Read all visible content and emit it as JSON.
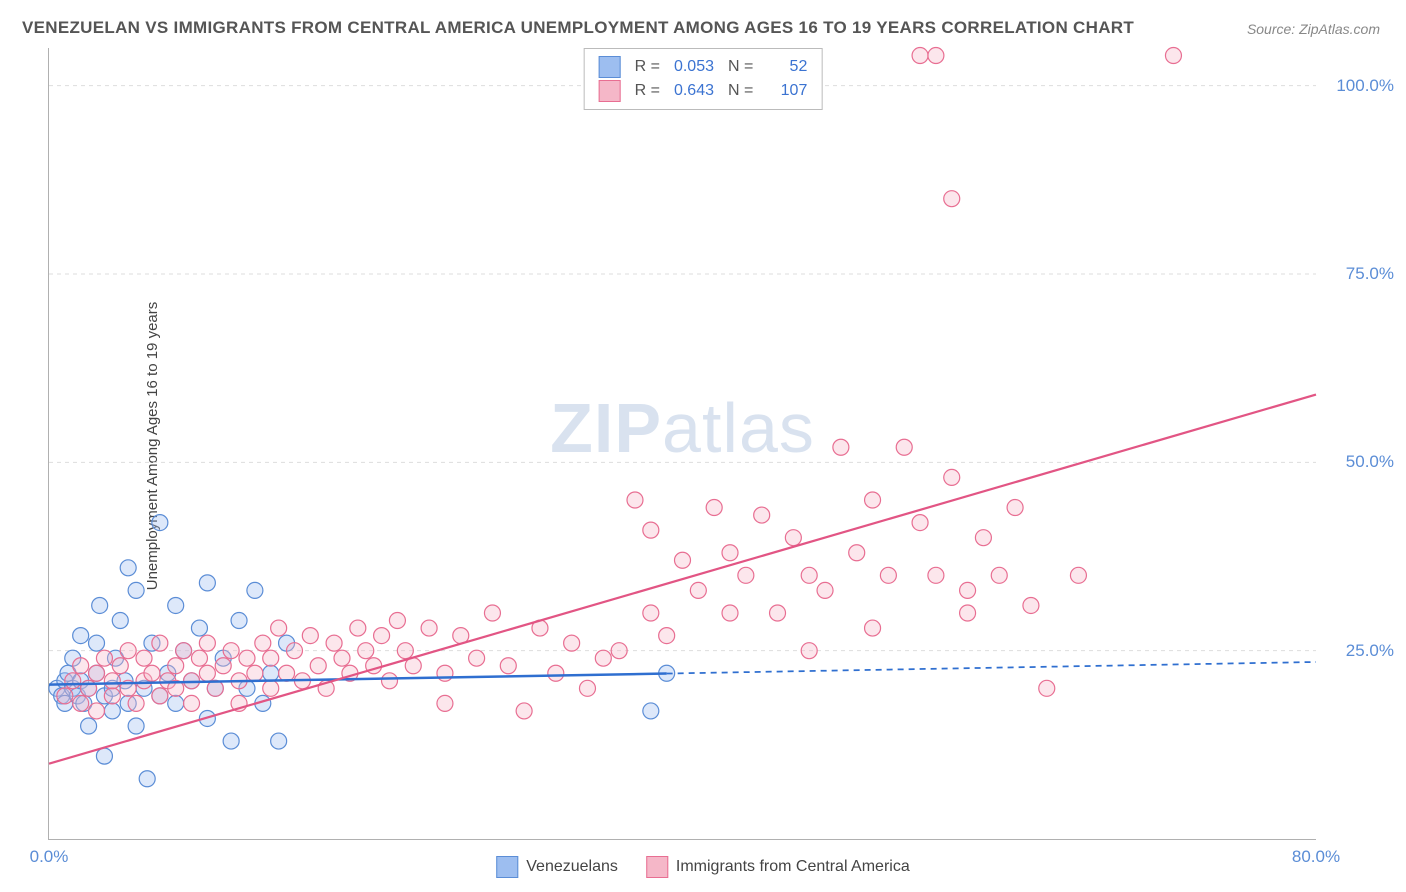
{
  "title": "VENEZUELAN VS IMMIGRANTS FROM CENTRAL AMERICA UNEMPLOYMENT AMONG AGES 16 TO 19 YEARS CORRELATION CHART",
  "source": "Source: ZipAtlas.com",
  "y_axis_label": "Unemployment Among Ages 16 to 19 years",
  "watermark_a": "ZIP",
  "watermark_b": "atlas",
  "chart": {
    "type": "scatter",
    "xlim": [
      0,
      80
    ],
    "ylim": [
      0,
      105
    ],
    "x_ticks": [
      {
        "v": 0,
        "label": "0.0%"
      },
      {
        "v": 80,
        "label": "80.0%"
      }
    ],
    "y_ticks": [
      {
        "v": 25,
        "label": "25.0%"
      },
      {
        "v": 50,
        "label": "50.0%"
      },
      {
        "v": 75,
        "label": "75.0%"
      },
      {
        "v": 100,
        "label": "100.0%"
      }
    ],
    "grid_color": "#dddddd",
    "axis_color": "#b0b0b0",
    "background_color": "#ffffff",
    "marker_radius": 8,
    "marker_fill_opacity": 0.35,
    "marker_stroke_width": 1.2,
    "series": [
      {
        "name": "Venezuelans",
        "color_fill": "#9dbef0",
        "color_stroke": "#5b8dd6",
        "r": 0.053,
        "n": 52,
        "trend": {
          "x1": 0,
          "y1": 20.5,
          "x2": 80,
          "y2": 23.5,
          "solid_until_x": 39,
          "color": "#2f6fd0",
          "width": 2.5
        },
        "points": [
          [
            0.5,
            20
          ],
          [
            0.8,
            19
          ],
          [
            1,
            21
          ],
          [
            1,
            18
          ],
          [
            1.2,
            22
          ],
          [
            1.5,
            20
          ],
          [
            1.5,
            24
          ],
          [
            1.8,
            19
          ],
          [
            2,
            21
          ],
          [
            2,
            27
          ],
          [
            2.2,
            18
          ],
          [
            2.5,
            20
          ],
          [
            2.5,
            15
          ],
          [
            3,
            22
          ],
          [
            3,
            26
          ],
          [
            3.2,
            31
          ],
          [
            3.5,
            19
          ],
          [
            3.5,
            11
          ],
          [
            4,
            20
          ],
          [
            4,
            17
          ],
          [
            4.2,
            24
          ],
          [
            4.5,
            29
          ],
          [
            4.8,
            21
          ],
          [
            5,
            18
          ],
          [
            5,
            36
          ],
          [
            5.5,
            33
          ],
          [
            5.5,
            15
          ],
          [
            6,
            20
          ],
          [
            6.2,
            8
          ],
          [
            6.5,
            26
          ],
          [
            7,
            19
          ],
          [
            7,
            42
          ],
          [
            7.5,
            22
          ],
          [
            8,
            31
          ],
          [
            8,
            18
          ],
          [
            8.5,
            25
          ],
          [
            9,
            21
          ],
          [
            9.5,
            28
          ],
          [
            10,
            16
          ],
          [
            10,
            34
          ],
          [
            10.5,
            20
          ],
          [
            11,
            24
          ],
          [
            11.5,
            13
          ],
          [
            12,
            29
          ],
          [
            12.5,
            20
          ],
          [
            13,
            33
          ],
          [
            13.5,
            18
          ],
          [
            14,
            22
          ],
          [
            14.5,
            13
          ],
          [
            15,
            26
          ],
          [
            38,
            17
          ],
          [
            39,
            22
          ]
        ]
      },
      {
        "name": "Immigrants from Central America",
        "color_fill": "#f5b7c8",
        "color_stroke": "#e86e92",
        "r": 0.643,
        "n": 107,
        "trend": {
          "x1": 0,
          "y1": 10,
          "x2": 80,
          "y2": 59,
          "solid_until_x": 80,
          "color": "#e25584",
          "width": 2.2
        },
        "points": [
          [
            1,
            19
          ],
          [
            1.5,
            21
          ],
          [
            2,
            18
          ],
          [
            2,
            23
          ],
          [
            2.5,
            20
          ],
          [
            3,
            22
          ],
          [
            3,
            17
          ],
          [
            3.5,
            24
          ],
          [
            4,
            19
          ],
          [
            4,
            21
          ],
          [
            4.5,
            23
          ],
          [
            5,
            20
          ],
          [
            5,
            25
          ],
          [
            5.5,
            18
          ],
          [
            6,
            21
          ],
          [
            6,
            24
          ],
          [
            6.5,
            22
          ],
          [
            7,
            19
          ],
          [
            7,
            26
          ],
          [
            7.5,
            21
          ],
          [
            8,
            23
          ],
          [
            8,
            20
          ],
          [
            8.5,
            25
          ],
          [
            9,
            21
          ],
          [
            9,
            18
          ],
          [
            9.5,
            24
          ],
          [
            10,
            22
          ],
          [
            10,
            26
          ],
          [
            10.5,
            20
          ],
          [
            11,
            23
          ],
          [
            11.5,
            25
          ],
          [
            12,
            21
          ],
          [
            12,
            18
          ],
          [
            12.5,
            24
          ],
          [
            13,
            22
          ],
          [
            13.5,
            26
          ],
          [
            14,
            20
          ],
          [
            14,
            24
          ],
          [
            14.5,
            28
          ],
          [
            15,
            22
          ],
          [
            15.5,
            25
          ],
          [
            16,
            21
          ],
          [
            16.5,
            27
          ],
          [
            17,
            23
          ],
          [
            17.5,
            20
          ],
          [
            18,
            26
          ],
          [
            18.5,
            24
          ],
          [
            19,
            22
          ],
          [
            19.5,
            28
          ],
          [
            20,
            25
          ],
          [
            20.5,
            23
          ],
          [
            21,
            27
          ],
          [
            21.5,
            21
          ],
          [
            22,
            29
          ],
          [
            22.5,
            25
          ],
          [
            23,
            23
          ],
          [
            24,
            28
          ],
          [
            25,
            22
          ],
          [
            25,
            18
          ],
          [
            26,
            27
          ],
          [
            27,
            24
          ],
          [
            28,
            30
          ],
          [
            29,
            23
          ],
          [
            30,
            17
          ],
          [
            31,
            28
          ],
          [
            32,
            22
          ],
          [
            33,
            26
          ],
          [
            34,
            20
          ],
          [
            35,
            24
          ],
          [
            36,
            25
          ],
          [
            37,
            45
          ],
          [
            38,
            30
          ],
          [
            38,
            41
          ],
          [
            39,
            27
          ],
          [
            40,
            37
          ],
          [
            41,
            33
          ],
          [
            42,
            44
          ],
          [
            43,
            30
          ],
          [
            43,
            38
          ],
          [
            44,
            35
          ],
          [
            45,
            43
          ],
          [
            46,
            30
          ],
          [
            47,
            40
          ],
          [
            48,
            35
          ],
          [
            49,
            33
          ],
          [
            50,
            52
          ],
          [
            51,
            38
          ],
          [
            52,
            45
          ],
          [
            53,
            35
          ],
          [
            54,
            52
          ],
          [
            55,
            42
          ],
          [
            56,
            35
          ],
          [
            57,
            48
          ],
          [
            58,
            33
          ],
          [
            59,
            40
          ],
          [
            60,
            35
          ],
          [
            61,
            44
          ],
          [
            62,
            31
          ],
          [
            63,
            20
          ],
          [
            55,
            104
          ],
          [
            56,
            104
          ],
          [
            57,
            85
          ],
          [
            71,
            104
          ],
          [
            65,
            35
          ],
          [
            58,
            30
          ],
          [
            52,
            28
          ],
          [
            48,
            25
          ]
        ]
      }
    ]
  },
  "legend": {
    "series1_label": "Venezuelans",
    "series2_label": "Immigrants from Central America"
  },
  "stats_box": {
    "r_label": "R =",
    "n_label": "N ="
  }
}
